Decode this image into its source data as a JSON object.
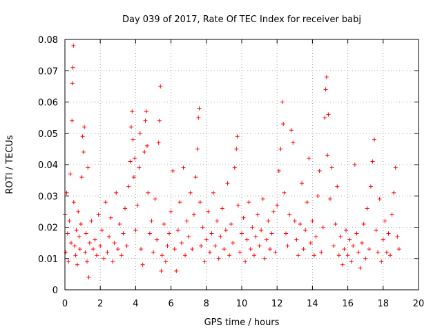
{
  "chart_data": {
    "type": "scatter",
    "title": "Day 039 of 2017, Rate Of TEC Index for receiver babj",
    "xlabel": "GPS time / hours",
    "ylabel": "ROTI / TECUs",
    "xlim": [
      0,
      20
    ],
    "ylim": [
      0,
      0.08
    ],
    "x_ticks": [
      "0",
      "2",
      "4",
      "6",
      "8",
      "10",
      "12",
      "14",
      "16",
      "18",
      "20"
    ],
    "y_ticks": [
      "0",
      "0.01",
      "0.02",
      "0.03",
      "0.04",
      "0.05",
      "0.06",
      "0.07",
      "0.08"
    ],
    "grid": true,
    "marker": "+",
    "marker_color": "#ff0000",
    "series": [
      {
        "points": [
          [
            0.0,
            0.024
          ],
          [
            0.05,
            0.012
          ],
          [
            0.1,
            0.031
          ],
          [
            0.15,
            0.018
          ],
          [
            0.2,
            0.009
          ],
          [
            0.25,
            0.022
          ],
          [
            0.3,
            0.037
          ],
          [
            0.35,
            0.015
          ],
          [
            0.4,
            0.054
          ],
          [
            0.42,
            0.066
          ],
          [
            0.45,
            0.071
          ],
          [
            0.48,
            0.078
          ],
          [
            0.5,
            0.028
          ],
          [
            0.55,
            0.014
          ],
          [
            0.6,
            0.011
          ],
          [
            0.65,
            0.019
          ],
          [
            0.7,
            0.008
          ],
          [
            0.75,
            0.025
          ],
          [
            0.8,
            0.017
          ],
          [
            0.85,
            0.013
          ],
          [
            0.9,
            0.021
          ],
          [
            0.95,
            0.036
          ],
          [
            1.0,
            0.049
          ],
          [
            1.05,
            0.044
          ],
          [
            1.1,
            0.052
          ],
          [
            1.15,
            0.012
          ],
          [
            1.2,
            0.018
          ],
          [
            1.25,
            0.009
          ],
          [
            1.3,
            0.039
          ],
          [
            1.35,
            0.004
          ],
          [
            1.4,
            0.015
          ],
          [
            1.5,
            0.022
          ],
          [
            1.6,
            0.013
          ],
          [
            1.7,
            0.016
          ],
          [
            1.8,
            0.011
          ],
          [
            1.9,
            0.024
          ],
          [
            2.0,
            0.014
          ],
          [
            2.1,
            0.019
          ],
          [
            2.2,
            0.01
          ],
          [
            2.3,
            0.028
          ],
          [
            2.4,
            0.012
          ],
          [
            2.5,
            0.017
          ],
          [
            2.6,
            0.023
          ],
          [
            2.7,
            0.009
          ],
          [
            2.8,
            0.015
          ],
          [
            2.9,
            0.031
          ],
          [
            3.0,
            0.013
          ],
          [
            3.1,
            0.021
          ],
          [
            3.2,
            0.011
          ],
          [
            3.3,
            0.018
          ],
          [
            3.4,
            0.026
          ],
          [
            3.5,
            0.014
          ],
          [
            3.6,
            0.033
          ],
          [
            3.7,
            0.041
          ],
          [
            3.75,
            0.052
          ],
          [
            3.8,
            0.057
          ],
          [
            3.85,
            0.048
          ],
          [
            3.9,
            0.036
          ],
          [
            3.95,
            0.042
          ],
          [
            4.0,
            0.019
          ],
          [
            4.1,
            0.027
          ],
          [
            4.2,
            0.039
          ],
          [
            4.25,
            0.05
          ],
          [
            4.3,
            0.013
          ],
          [
            4.4,
            0.008
          ],
          [
            4.5,
            0.044
          ],
          [
            4.55,
            0.054
          ],
          [
            4.6,
            0.057
          ],
          [
            4.65,
            0.046
          ],
          [
            4.7,
            0.031
          ],
          [
            4.8,
            0.018
          ],
          [
            4.9,
            0.022
          ],
          [
            5.0,
            0.012
          ],
          [
            5.1,
            0.029
          ],
          [
            5.2,
            0.016
          ],
          [
            5.3,
            0.047
          ],
          [
            5.35,
            0.054
          ],
          [
            5.4,
            0.065
          ],
          [
            5.45,
            0.006
          ],
          [
            5.5,
            0.011
          ],
          [
            5.6,
            0.021
          ],
          [
            5.7,
            0.009
          ],
          [
            5.8,
            0.014
          ],
          [
            5.9,
            0.018
          ],
          [
            6.0,
            0.025
          ],
          [
            6.1,
            0.038
          ],
          [
            6.2,
            0.013
          ],
          [
            6.3,
            0.006
          ],
          [
            6.4,
            0.019
          ],
          [
            6.5,
            0.028
          ],
          [
            6.6,
            0.015
          ],
          [
            6.7,
            0.039
          ],
          [
            6.8,
            0.011
          ],
          [
            6.9,
            0.022
          ],
          [
            7.0,
            0.017
          ],
          [
            7.1,
            0.031
          ],
          [
            7.2,
            0.013
          ],
          [
            7.3,
            0.024
          ],
          [
            7.4,
            0.036
          ],
          [
            7.5,
            0.045
          ],
          [
            7.55,
            0.055
          ],
          [
            7.6,
            0.058
          ],
          [
            7.65,
            0.028
          ],
          [
            7.7,
            0.014
          ],
          [
            7.8,
            0.02
          ],
          [
            7.9,
            0.009
          ],
          [
            8.0,
            0.016
          ],
          [
            8.1,
            0.025
          ],
          [
            8.2,
            0.012
          ],
          [
            8.3,
            0.018
          ],
          [
            8.4,
            0.031
          ],
          [
            8.5,
            0.014
          ],
          [
            8.6,
            0.022
          ],
          [
            8.7,
            0.01
          ],
          [
            8.8,
            0.017
          ],
          [
            8.9,
            0.026
          ],
          [
            9.0,
            0.013
          ],
          [
            9.1,
            0.019
          ],
          [
            9.2,
            0.034
          ],
          [
            9.3,
            0.011
          ],
          [
            9.4,
            0.021
          ],
          [
            9.5,
            0.015
          ],
          [
            9.6,
            0.039
          ],
          [
            9.7,
            0.045
          ],
          [
            9.75,
            0.049
          ],
          [
            9.8,
            0.027
          ],
          [
            9.9,
            0.012
          ],
          [
            10.0,
            0.018
          ],
          [
            10.1,
            0.023
          ],
          [
            10.2,
            0.009
          ],
          [
            10.3,
            0.016
          ],
          [
            10.4,
            0.028
          ],
          [
            10.5,
            0.013
          ],
          [
            10.6,
            0.02
          ],
          [
            10.7,
            0.011
          ],
          [
            10.8,
            0.017
          ],
          [
            10.9,
            0.024
          ],
          [
            11.0,
            0.014
          ],
          [
            11.1,
            0.019
          ],
          [
            11.2,
            0.029
          ],
          [
            11.3,
            0.01
          ],
          [
            11.4,
            0.016
          ],
          [
            11.5,
            0.022
          ],
          [
            11.6,
            0.013
          ],
          [
            11.7,
            0.018
          ],
          [
            11.8,
            0.025
          ],
          [
            11.9,
            0.012
          ],
          [
            12.0,
            0.027
          ],
          [
            12.1,
            0.038
          ],
          [
            12.2,
            0.045
          ],
          [
            12.3,
            0.06
          ],
          [
            12.35,
            0.053
          ],
          [
            12.4,
            0.031
          ],
          [
            12.5,
            0.018
          ],
          [
            12.6,
            0.014
          ],
          [
            12.7,
            0.024
          ],
          [
            12.8,
            0.051
          ],
          [
            12.9,
            0.047
          ],
          [
            13.0,
            0.022
          ],
          [
            13.1,
            0.016
          ],
          [
            13.2,
            0.011
          ],
          [
            13.3,
            0.021
          ],
          [
            13.4,
            0.034
          ],
          [
            13.5,
            0.013
          ],
          [
            13.6,
            0.019
          ],
          [
            13.7,
            0.028
          ],
          [
            13.8,
            0.042
          ],
          [
            13.9,
            0.015
          ],
          [
            14.0,
            0.022
          ],
          [
            14.1,
            0.011
          ],
          [
            14.2,
            0.017
          ],
          [
            14.3,
            0.03
          ],
          [
            14.4,
            0.038
          ],
          [
            14.5,
            0.012
          ],
          [
            14.6,
            0.02
          ],
          [
            14.7,
            0.055
          ],
          [
            14.75,
            0.064
          ],
          [
            14.8,
            0.068
          ],
          [
            14.85,
            0.043
          ],
          [
            14.9,
            0.056
          ],
          [
            15.0,
            0.029
          ],
          [
            15.1,
            0.039
          ],
          [
            15.2,
            0.014
          ],
          [
            15.3,
            0.021
          ],
          [
            15.4,
            0.033
          ],
          [
            15.5,
            0.011
          ],
          [
            15.6,
            0.017
          ],
          [
            15.7,
            0.008
          ],
          [
            15.8,
            0.013
          ],
          [
            15.9,
            0.019
          ],
          [
            16.0,
            0.011
          ],
          [
            16.1,
            0.016
          ],
          [
            16.2,
            0.009
          ],
          [
            16.3,
            0.014
          ],
          [
            16.4,
            0.04
          ],
          [
            16.5,
            0.018
          ],
          [
            16.6,
            0.012
          ],
          [
            16.7,
            0.007
          ],
          [
            16.8,
            0.015
          ],
          [
            16.9,
            0.021
          ],
          [
            17.0,
            0.01
          ],
          [
            17.1,
            0.026
          ],
          [
            17.2,
            0.013
          ],
          [
            17.3,
            0.033
          ],
          [
            17.4,
            0.041
          ],
          [
            17.5,
            0.048
          ],
          [
            17.6,
            0.019
          ],
          [
            17.7,
            0.012
          ],
          [
            17.8,
            0.029
          ],
          [
            17.9,
            0.009
          ],
          [
            18.0,
            0.016
          ],
          [
            18.1,
            0.022
          ],
          [
            18.2,
            0.012
          ],
          [
            18.3,
            0.018
          ],
          [
            18.4,
            0.011
          ],
          [
            18.5,
            0.024
          ],
          [
            18.6,
            0.031
          ],
          [
            18.7,
            0.039
          ],
          [
            18.8,
            0.017
          ],
          [
            18.9,
            0.013
          ]
        ]
      }
    ]
  }
}
